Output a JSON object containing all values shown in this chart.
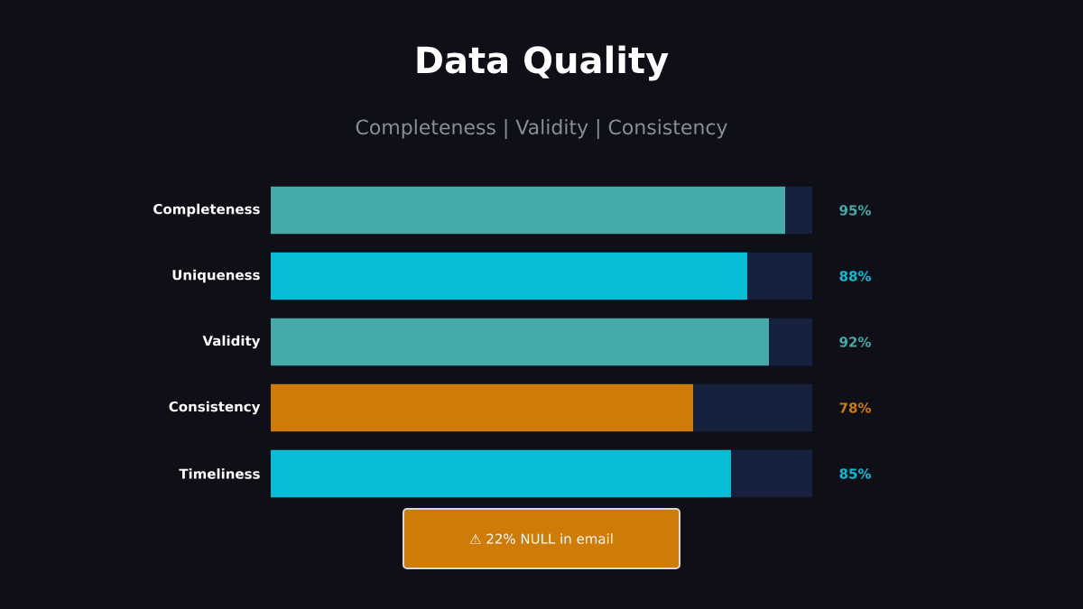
{
  "chart_data": {
    "type": "bar",
    "orientation": "horizontal",
    "stacked": true,
    "title": "Data Quality",
    "subtitle": "Completeness | Validity | Consistency",
    "categories": [
      "Completeness",
      "Uniqueness",
      "Validity",
      "Consistency",
      "Timeliness"
    ],
    "series": [
      {
        "colors": [
          "#45aaa8",
          "#06bdd6",
          "#45aaa8",
          "#cf7b08",
          "#06bdd6"
        ],
        "values": [
          95,
          88,
          92,
          78,
          85
        ],
        "value_labels": [
          "95%",
          "88%",
          "92%",
          "78%",
          "85%"
        ]
      },
      {
        "color": "#16213e",
        "values": [
          5,
          12,
          8,
          22,
          15
        ]
      }
    ],
    "xlim": [
      0,
      100
    ],
    "tick_labels": "y",
    "annotations": [
      "⚠ 22% NULL in email"
    ]
  }
}
